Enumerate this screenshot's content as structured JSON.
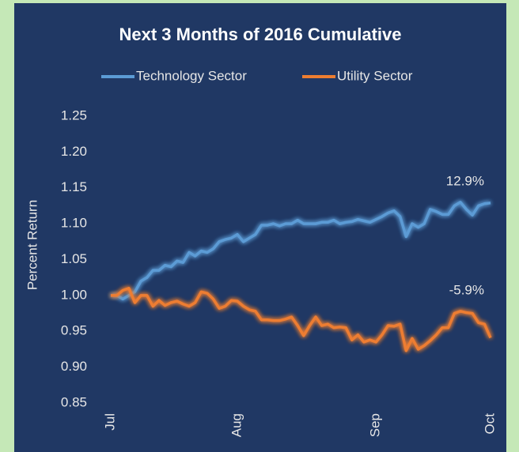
{
  "chart_data": {
    "type": "line",
    "title": "Next 3 Months of 2016 Cumulative",
    "y_label": "Percent Return",
    "legend": "top",
    "grid": false,
    "categories": [
      "Jul",
      null,
      null,
      null,
      null,
      null,
      null,
      null,
      null,
      null,
      null,
      null,
      null,
      null,
      null,
      null,
      null,
      null,
      null,
      null,
      null,
      "Aug",
      null,
      null,
      null,
      null,
      null,
      null,
      null,
      null,
      null,
      null,
      null,
      null,
      null,
      null,
      null,
      null,
      null,
      null,
      null,
      null,
      null,
      null,
      "Sep",
      null,
      null,
      null,
      null,
      null,
      null,
      null,
      null,
      null,
      null,
      null,
      null,
      null,
      null,
      null,
      null,
      null,
      null,
      "Oct"
    ],
    "ylim": [
      0.85,
      1.25
    ],
    "yticks": [
      0.85,
      {
        "value": 0.9,
        "label": "0.90"
      },
      0.95,
      {
        "value": 1.0,
        "label": "1.00"
      },
      1.05,
      {
        "value": 1.1,
        "label": "1.10"
      },
      1.15,
      {
        "value": 1.2,
        "label": "1.20"
      },
      1.25
    ],
    "series": [
      {
        "name": "Technology Sector",
        "color": "#5b9bd5",
        "end_label": "12.9%",
        "values": [
          1.0,
          1.0,
          0.995,
          1.0,
          1.005,
          1.02,
          1.025,
          1.035,
          1.035,
          1.042,
          1.04,
          1.048,
          1.046,
          1.06,
          1.055,
          1.062,
          1.06,
          1.065,
          1.075,
          1.078,
          1.08,
          1.085,
          1.075,
          1.08,
          1.085,
          1.098,
          1.098,
          1.1,
          1.097,
          1.1,
          1.1,
          1.105,
          1.1,
          1.1,
          1.1,
          1.102,
          1.102,
          1.105,
          1.1,
          1.102,
          1.103,
          1.106,
          1.104,
          1.102,
          1.106,
          1.11,
          1.115,
          1.118,
          1.11,
          1.082,
          1.1,
          1.095,
          1.1,
          1.12,
          1.117,
          1.113,
          1.113,
          1.125,
          1.13,
          1.12,
          1.112,
          1.125,
          1.128,
          1.129
        ]
      },
      {
        "name": "Utility Sector",
        "color": "#ed7d31",
        "end_label": "-5.9%",
        "values": [
          1.0,
          1.0,
          1.007,
          1.01,
          0.99,
          1.0,
          1.0,
          0.985,
          0.993,
          0.986,
          0.99,
          0.992,
          0.988,
          0.985,
          0.99,
          1.005,
          1.003,
          0.995,
          0.982,
          0.985,
          0.993,
          0.992,
          0.985,
          0.98,
          0.978,
          0.966,
          0.966,
          0.965,
          0.965,
          0.967,
          0.97,
          0.958,
          0.944,
          0.958,
          0.97,
          0.958,
          0.96,
          0.955,
          0.956,
          0.955,
          0.938,
          0.945,
          0.935,
          0.938,
          0.935,
          0.945,
          0.958,
          0.957,
          0.96,
          0.923,
          0.94,
          0.925,
          0.93,
          0.937,
          0.945,
          0.955,
          0.955,
          0.975,
          0.978,
          0.976,
          0.975,
          0.962,
          0.96,
          0.941
        ]
      }
    ]
  }
}
